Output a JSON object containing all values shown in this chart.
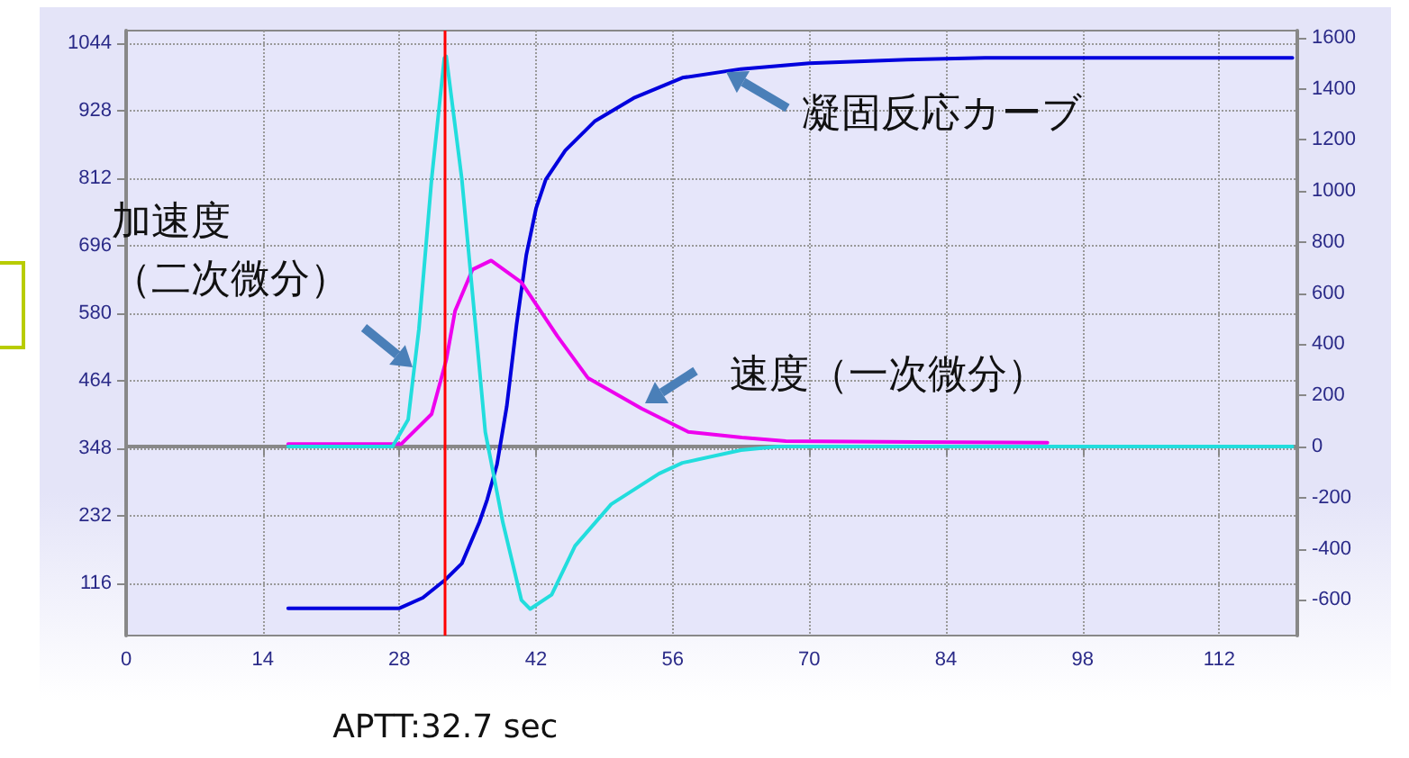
{
  "chart_data": {
    "type": "line",
    "legend": false,
    "grid": true,
    "marker": "none",
    "line_style": "solid",
    "xlim": [
      0,
      120
    ],
    "xticks": [
      0,
      14,
      28,
      42,
      56,
      70,
      84,
      98,
      112
    ],
    "ylim": [
      26,
      1066
    ],
    "yticks": [
      116,
      232,
      348,
      464,
      580,
      696,
      812,
      928,
      1044
    ],
    "y2lim": [
      -740,
      1628
    ],
    "y2ticks": [
      -600,
      -400,
      -200,
      0,
      200,
      400,
      600,
      800,
      1000,
      1200,
      1400,
      1600
    ],
    "ref_lines": [
      {
        "axis": "x",
        "value": 32.7,
        "label": "APTT:32.7 sec",
        "color": "#ff0000"
      }
    ],
    "series": [
      {
        "name": "凝固反応カーブ",
        "color": "#0000dd",
        "x": [
          16.6,
          28,
          30.4,
          32.7,
          34.4,
          36.2,
          37,
          38,
          39,
          40,
          41,
          42,
          43,
          45,
          48,
          52,
          57,
          63,
          70,
          80,
          88,
          119.5
        ],
        "values": [
          73,
          73,
          91,
          122,
          150,
          221,
          260,
          320,
          420,
          560,
          680,
          760,
          810,
          860,
          910,
          950,
          985,
          1000,
          1010,
          1016,
          1019,
          1019
        ]
      },
      {
        "name": "速度（一次微分）",
        "color": "#ee00ee",
        "axis": "y2",
        "x": [
          16.6,
          28.2,
          31.3,
          32.8,
          33.7,
          35.5,
          37.4,
          40.5,
          44.2,
          47.3,
          52.8,
          57.6,
          63.1,
          67.6,
          94.4
        ],
        "values": [
          10,
          10,
          127,
          339,
          530,
          693,
          728,
          643,
          431,
          269,
          149,
          57,
          35,
          21,
          15
        ]
      },
      {
        "name": "加速度（二次微分）",
        "color": "#22dddd",
        "axis": "y2",
        "x": [
          16.6,
          27.3,
          28.9,
          29.4,
          30,
          31.3,
          32.6,
          32.8,
          34.4,
          35.9,
          36.8,
          38.6,
          40.5,
          41.4,
          43.6,
          46,
          49.7,
          54.6,
          57,
          63,
          66.8,
          119.5
        ],
        "values": [
          0,
          0,
          106,
          269,
          460,
          1046,
          1520,
          1527,
          1046,
          431,
          57,
          -297,
          -601,
          -636,
          -580,
          -389,
          -226,
          -106,
          -64,
          -14,
          0,
          0
        ]
      }
    ]
  }
}
